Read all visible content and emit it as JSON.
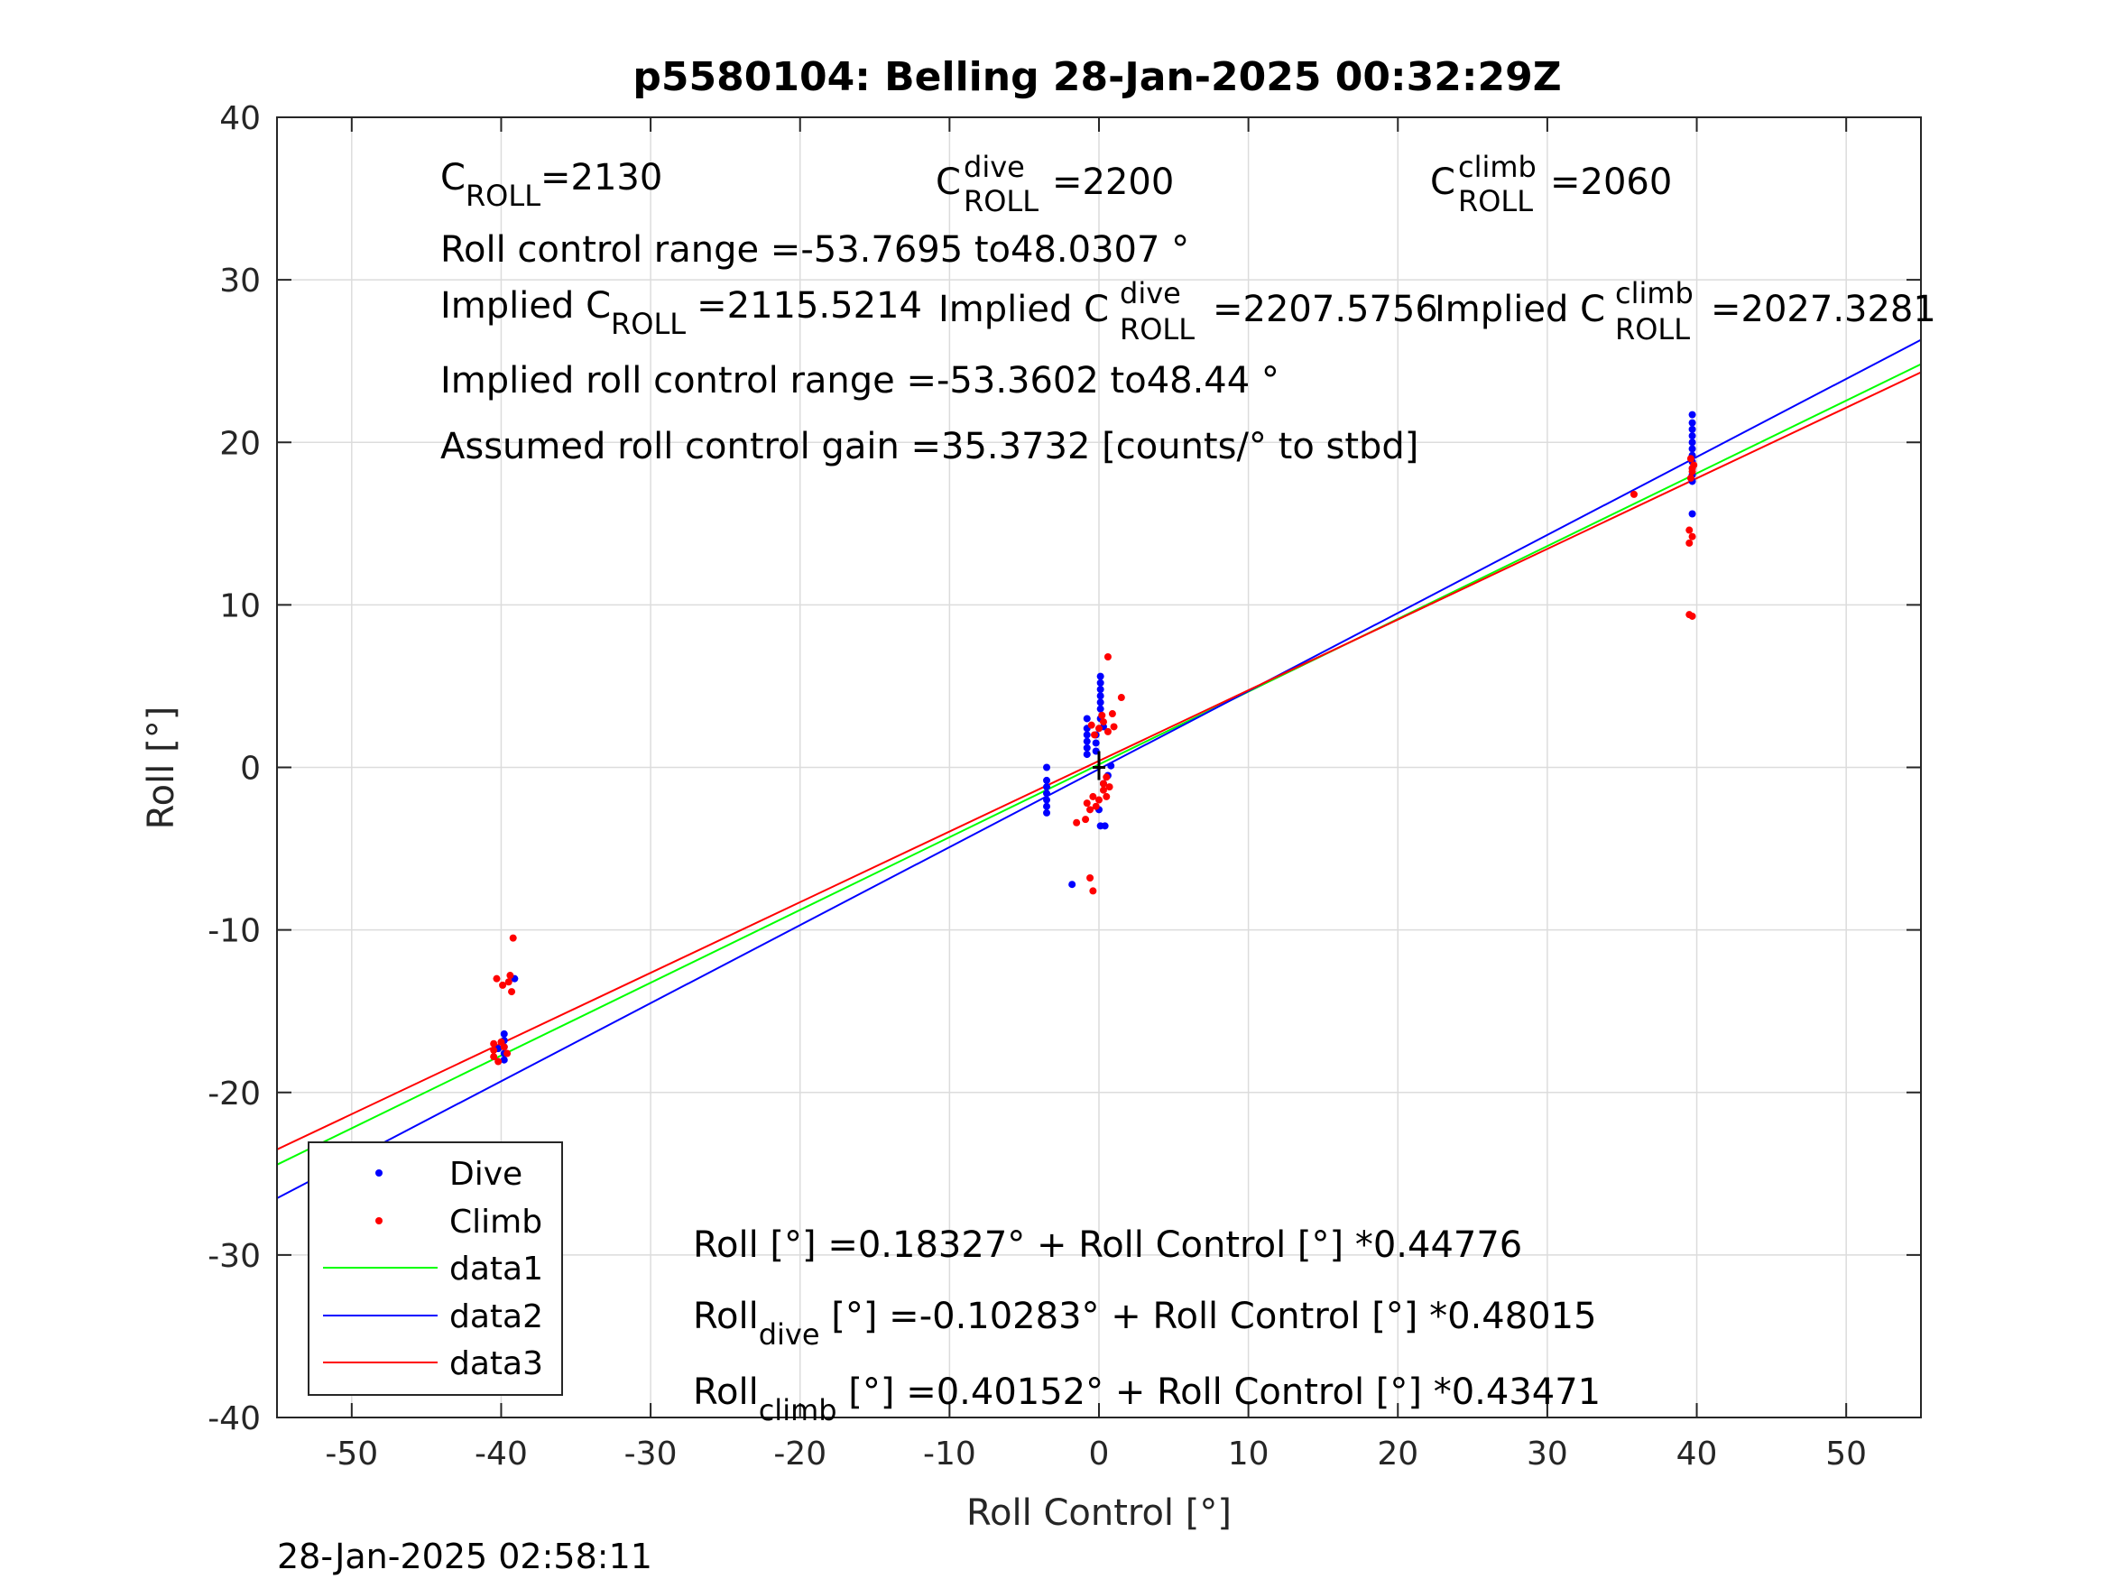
{
  "chart_data": {
    "type": "scatter",
    "title": "p5580104: Belling 28-Jan-2025 00:32:29Z",
    "xlabel": "Roll Control [°]",
    "ylabel": "Roll [°]",
    "xlim": [
      -55,
      55
    ],
    "ylim": [
      -40,
      40
    ],
    "xticks": [
      -50,
      -40,
      -30,
      -20,
      -10,
      0,
      10,
      20,
      30,
      40,
      50
    ],
    "yticks": [
      -40,
      -30,
      -20,
      -10,
      0,
      10,
      20,
      30,
      40
    ],
    "grid": true,
    "legend_position": "bottom-left",
    "series": [
      {
        "name": "Dive",
        "kind": "points",
        "color": "#0000ff",
        "points": [
          [
            -3.5,
            0.0
          ],
          [
            -3.5,
            -0.8
          ],
          [
            -3.5,
            -1.2
          ],
          [
            -3.5,
            -1.6
          ],
          [
            -3.5,
            -2.0
          ],
          [
            -3.5,
            -2.4
          ],
          [
            -3.5,
            -2.8
          ],
          [
            -1.8,
            -7.2
          ],
          [
            0.1,
            -3.6
          ],
          [
            0.4,
            -3.6
          ],
          [
            0.0,
            -2.6
          ],
          [
            -0.8,
            0.8
          ],
          [
            -0.8,
            1.2
          ],
          [
            -0.8,
            1.6
          ],
          [
            -0.8,
            2.0
          ],
          [
            -0.8,
            2.4
          ],
          [
            -0.8,
            3.0
          ],
          [
            0.1,
            3.0
          ],
          [
            0.1,
            3.6
          ],
          [
            0.1,
            4.0
          ],
          [
            0.1,
            4.4
          ],
          [
            0.1,
            4.8
          ],
          [
            0.1,
            5.2
          ],
          [
            0.1,
            5.6
          ],
          [
            -0.2,
            1.0
          ],
          [
            -0.2,
            1.5
          ],
          [
            -0.2,
            2.0
          ],
          [
            0.3,
            2.5
          ],
          [
            0.3,
            -1.0
          ],
          [
            0.6,
            -0.5
          ],
          [
            0.8,
            0.1
          ],
          [
            -39.8,
            -16.4
          ],
          [
            -39.8,
            -16.8
          ],
          [
            -39.8,
            -17.2
          ],
          [
            -39.8,
            -17.6
          ],
          [
            -39.8,
            -18.0
          ],
          [
            -39.1,
            -13.0
          ],
          [
            -40.2,
            -17.3
          ],
          [
            39.7,
            15.6
          ],
          [
            39.7,
            17.6
          ],
          [
            39.7,
            18.0
          ],
          [
            39.7,
            18.4
          ],
          [
            39.7,
            18.8
          ],
          [
            39.7,
            19.2
          ],
          [
            39.7,
            19.6
          ],
          [
            39.7,
            20.0
          ],
          [
            39.7,
            20.4
          ],
          [
            39.7,
            20.8
          ],
          [
            39.7,
            21.2
          ],
          [
            39.7,
            21.7
          ]
        ]
      },
      {
        "name": "Climb",
        "kind": "points",
        "color": "#ff0000",
        "points": [
          [
            -40.5,
            -17.0
          ],
          [
            -40.5,
            -17.4
          ],
          [
            -40.5,
            -17.8
          ],
          [
            -40.2,
            -18.1
          ],
          [
            -40.0,
            -16.9
          ],
          [
            -39.8,
            -17.2
          ],
          [
            -39.6,
            -17.6
          ],
          [
            -40.3,
            -13.0
          ],
          [
            -39.9,
            -13.4
          ],
          [
            -39.5,
            -13.2
          ],
          [
            -39.3,
            -13.8
          ],
          [
            -39.4,
            -12.8
          ],
          [
            -39.2,
            -10.5
          ],
          [
            -0.8,
            -2.2
          ],
          [
            -0.6,
            -2.6
          ],
          [
            -0.4,
            -1.8
          ],
          [
            -0.2,
            -2.4
          ],
          [
            0.0,
            -2.0
          ],
          [
            0.3,
            -1.4
          ],
          [
            0.3,
            -1.0
          ],
          [
            0.5,
            -0.6
          ],
          [
            0.5,
            -1.8
          ],
          [
            0.7,
            -1.2
          ],
          [
            -0.9,
            -3.2
          ],
          [
            -1.5,
            -3.4
          ],
          [
            -0.6,
            -6.8
          ],
          [
            -0.4,
            -7.6
          ],
          [
            0.6,
            6.8
          ],
          [
            1.5,
            4.3
          ],
          [
            -0.3,
            2.0
          ],
          [
            0.0,
            2.4
          ],
          [
            0.3,
            2.8
          ],
          [
            0.6,
            2.2
          ],
          [
            0.9,
            3.3
          ],
          [
            1.0,
            2.5
          ],
          [
            -0.5,
            2.6
          ],
          [
            0.2,
            3.2
          ],
          [
            35.8,
            16.8
          ],
          [
            39.5,
            9.4
          ],
          [
            39.7,
            9.3
          ],
          [
            39.5,
            13.8
          ],
          [
            39.7,
            14.2
          ],
          [
            39.5,
            14.6
          ],
          [
            39.6,
            17.8
          ],
          [
            39.7,
            18.2
          ],
          [
            39.8,
            18.6
          ],
          [
            39.6,
            19.0
          ],
          [
            39.7,
            18.4
          ]
        ]
      },
      {
        "name": "data1",
        "kind": "line",
        "color": "#00ff00",
        "intercept": 0.18327,
        "slope": 0.44776,
        "x": [
          -55,
          55
        ]
      },
      {
        "name": "data2",
        "kind": "line",
        "color": "#0000ff",
        "intercept": -0.10283,
        "slope": 0.48015,
        "x": [
          -55,
          55
        ]
      },
      {
        "name": "data3",
        "kind": "line",
        "color": "#ff0000",
        "intercept": 0.40152,
        "slope": 0.43471,
        "x": [
          -55,
          55
        ]
      }
    ],
    "center_marker": [
      0.0,
      0.0
    ]
  },
  "annotations": {
    "c_roll": {
      "base": "C",
      "sub": "ROLL",
      "value": "=2130"
    },
    "c_roll_dive": {
      "base": "C",
      "sup": "dive",
      "sub": "ROLL",
      "value": "=2200"
    },
    "c_roll_climb": {
      "base": "C",
      "sup": "climb",
      "sub": "ROLL",
      "value": "=2060"
    },
    "roll_range": "Roll control range =-53.7695 to48.0307 °",
    "implied_c_roll": {
      "prefix": "Implied C",
      "sub": "ROLL",
      "value": "=2115.5214"
    },
    "implied_c_roll_dive": {
      "prefix": "Implied C",
      "sup": "dive",
      "sub": "ROLL",
      "value": "=2207.5756"
    },
    "implied_c_roll_climb": {
      "prefix": "Implied C",
      "sup": "climb",
      "sub": "ROLL",
      "value": "=2027.3281"
    },
    "implied_range": "Implied roll control range =-53.3602 to48.44 °",
    "gain": "Assumed roll control gain =35.3732 [counts/° to stbd]",
    "fit_all": "Roll [°] =0.18327° + Roll Control [°] *0.44776",
    "fit_dive": {
      "base": "Roll",
      "sub": "dive",
      "rest": " [°] =-0.10283° + Roll Control [°] *0.48015"
    },
    "fit_climb": {
      "base": "Roll",
      "sub": "climb",
      "rest": " [°] =0.40152° + Roll Control [°] *0.43471"
    }
  },
  "timestamp": "28-Jan-2025 02:58:11"
}
